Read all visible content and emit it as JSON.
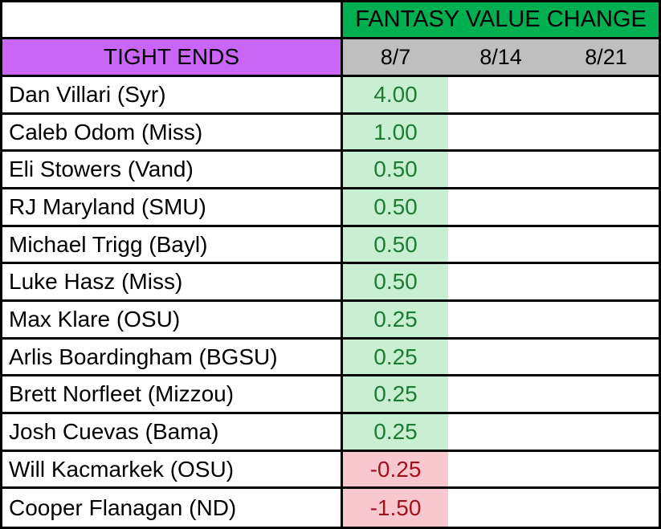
{
  "table": {
    "title": "FANTASY VALUE CHANGE",
    "position_header": "TIGHT ENDS",
    "date_headers": [
      "8/7",
      "8/14",
      "8/21"
    ],
    "rows": [
      {
        "name": "Dan Villari (Syr)",
        "values": [
          "4.00",
          "",
          ""
        ],
        "trend": "positive"
      },
      {
        "name": "Caleb Odom (Miss)",
        "values": [
          "1.00",
          "",
          ""
        ],
        "trend": "positive"
      },
      {
        "name": "Eli Stowers (Vand)",
        "values": [
          "0.50",
          "",
          ""
        ],
        "trend": "positive"
      },
      {
        "name": "RJ Maryland (SMU)",
        "values": [
          "0.50",
          "",
          ""
        ],
        "trend": "positive"
      },
      {
        "name": "Michael Trigg (Bayl)",
        "values": [
          "0.50",
          "",
          ""
        ],
        "trend": "positive"
      },
      {
        "name": "Luke Hasz (Miss)",
        "values": [
          "0.50",
          "",
          ""
        ],
        "trend": "positive"
      },
      {
        "name": "Max Klare (OSU)",
        "values": [
          "0.25",
          "",
          ""
        ],
        "trend": "positive"
      },
      {
        "name": "Arlis Boardingham (BGSU)",
        "values": [
          "0.25",
          "",
          ""
        ],
        "trend": "positive"
      },
      {
        "name": "Brett Norfleet (Mizzou)",
        "values": [
          "0.25",
          "",
          ""
        ],
        "trend": "positive"
      },
      {
        "name": "Josh Cuevas (Bama)",
        "values": [
          "0.25",
          "",
          ""
        ],
        "trend": "positive"
      },
      {
        "name": "Will Kacmarkek (OSU)",
        "values": [
          "-0.25",
          "",
          ""
        ],
        "trend": "negative"
      },
      {
        "name": "Cooper Flanagan (ND)",
        "values": [
          "-1.50",
          "",
          ""
        ],
        "trend": "negative"
      }
    ]
  },
  "colors": {
    "header_green": "#00AF50",
    "header_gray": "#BFBFBF",
    "position_purple": "#C966F7",
    "positive_bg": "#C9EFD2",
    "positive_text": "#1E7B34",
    "negative_bg": "#F9C8CE",
    "negative_text": "#A01222",
    "border_color": "#000000"
  }
}
